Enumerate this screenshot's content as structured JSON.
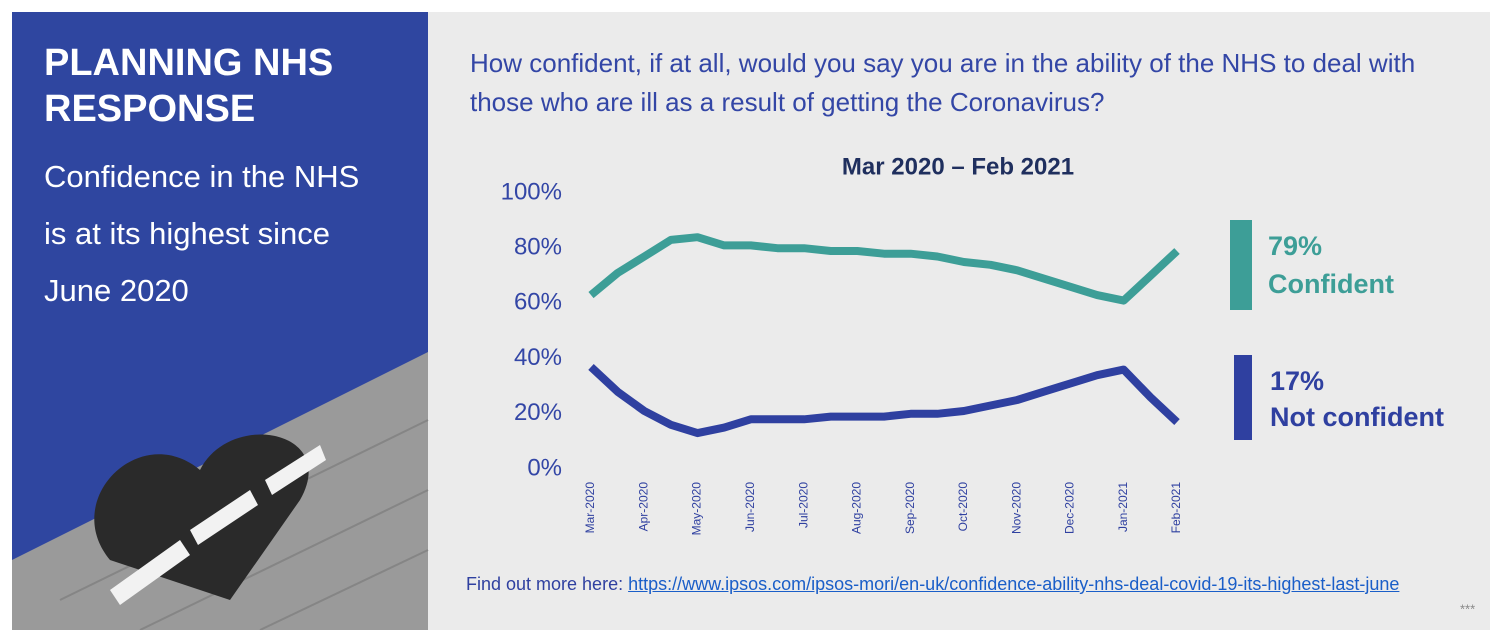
{
  "slide": {
    "heading": "PLANNING NHS RESPONSE",
    "subheading": "Confidence in the NHS is at its highest since June 2020",
    "question": "How confident, if at all, would you say you are in the ability of the NHS to deal with those who are ill as a result of getting the Coronavirus?",
    "footer_text": "Find out more here:",
    "footer_link": "https://www.ipsos.com/ipsos-mori/en-uk/confidence-ability-nhs-deal-covid-19-its-highest-last-june",
    "footnote": "***"
  },
  "chart_data": {
    "type": "line",
    "title": "Mar 2020 – Feb 2021",
    "categories": [
      "Mar-2020",
      null,
      "Apr-2020",
      null,
      "May-2020",
      null,
      "Jun-2020",
      null,
      "Jul-2020",
      null,
      "Aug-2020",
      null,
      "Sep-2020",
      null,
      "Oct-2020",
      null,
      "Nov-2020",
      null,
      "Dec-2020",
      null,
      "Jan-2021",
      null,
      "Feb-2021"
    ],
    "series": [
      {
        "name": "Confident",
        "color": "#3d9e97",
        "values": [
          63,
          71,
          77,
          83,
          84,
          81,
          81,
          80,
          80,
          79,
          79,
          78,
          78,
          77,
          75,
          74,
          72,
          69,
          66,
          63,
          61,
          70,
          79
        ],
        "value_labels": [
          null,
          null,
          null,
          null,
          null,
          null,
          null,
          null,
          null,
          null,
          null,
          null,
          null,
          null,
          null,
          null,
          null,
          null,
          null,
          null,
          null,
          null,
          "79%"
        ]
      },
      {
        "name": "Not confident",
        "color": "#2f40a0",
        "values": [
          37,
          28,
          21,
          16,
          13,
          15,
          18,
          18,
          18,
          19,
          19,
          19,
          20,
          20,
          21,
          23,
          25,
          28,
          31,
          34,
          36,
          26,
          17
        ],
        "value_labels": [
          null,
          null,
          null,
          null,
          null,
          null,
          null,
          null,
          null,
          null,
          null,
          null,
          null,
          null,
          null,
          null,
          null,
          null,
          null,
          null,
          null,
          null,
          "17%"
        ]
      }
    ],
    "ylim": [
      0,
      100
    ],
    "yticks": [
      {
        "value": 0,
        "label": "0%"
      },
      {
        "value": 20,
        "label": "20%"
      },
      {
        "value": 40,
        "label": "40%"
      },
      {
        "value": 60,
        "label": "60%"
      },
      {
        "value": 80,
        "label": "80%"
      },
      {
        "value": 100,
        "label": "100%"
      }
    ],
    "grid": false
  }
}
